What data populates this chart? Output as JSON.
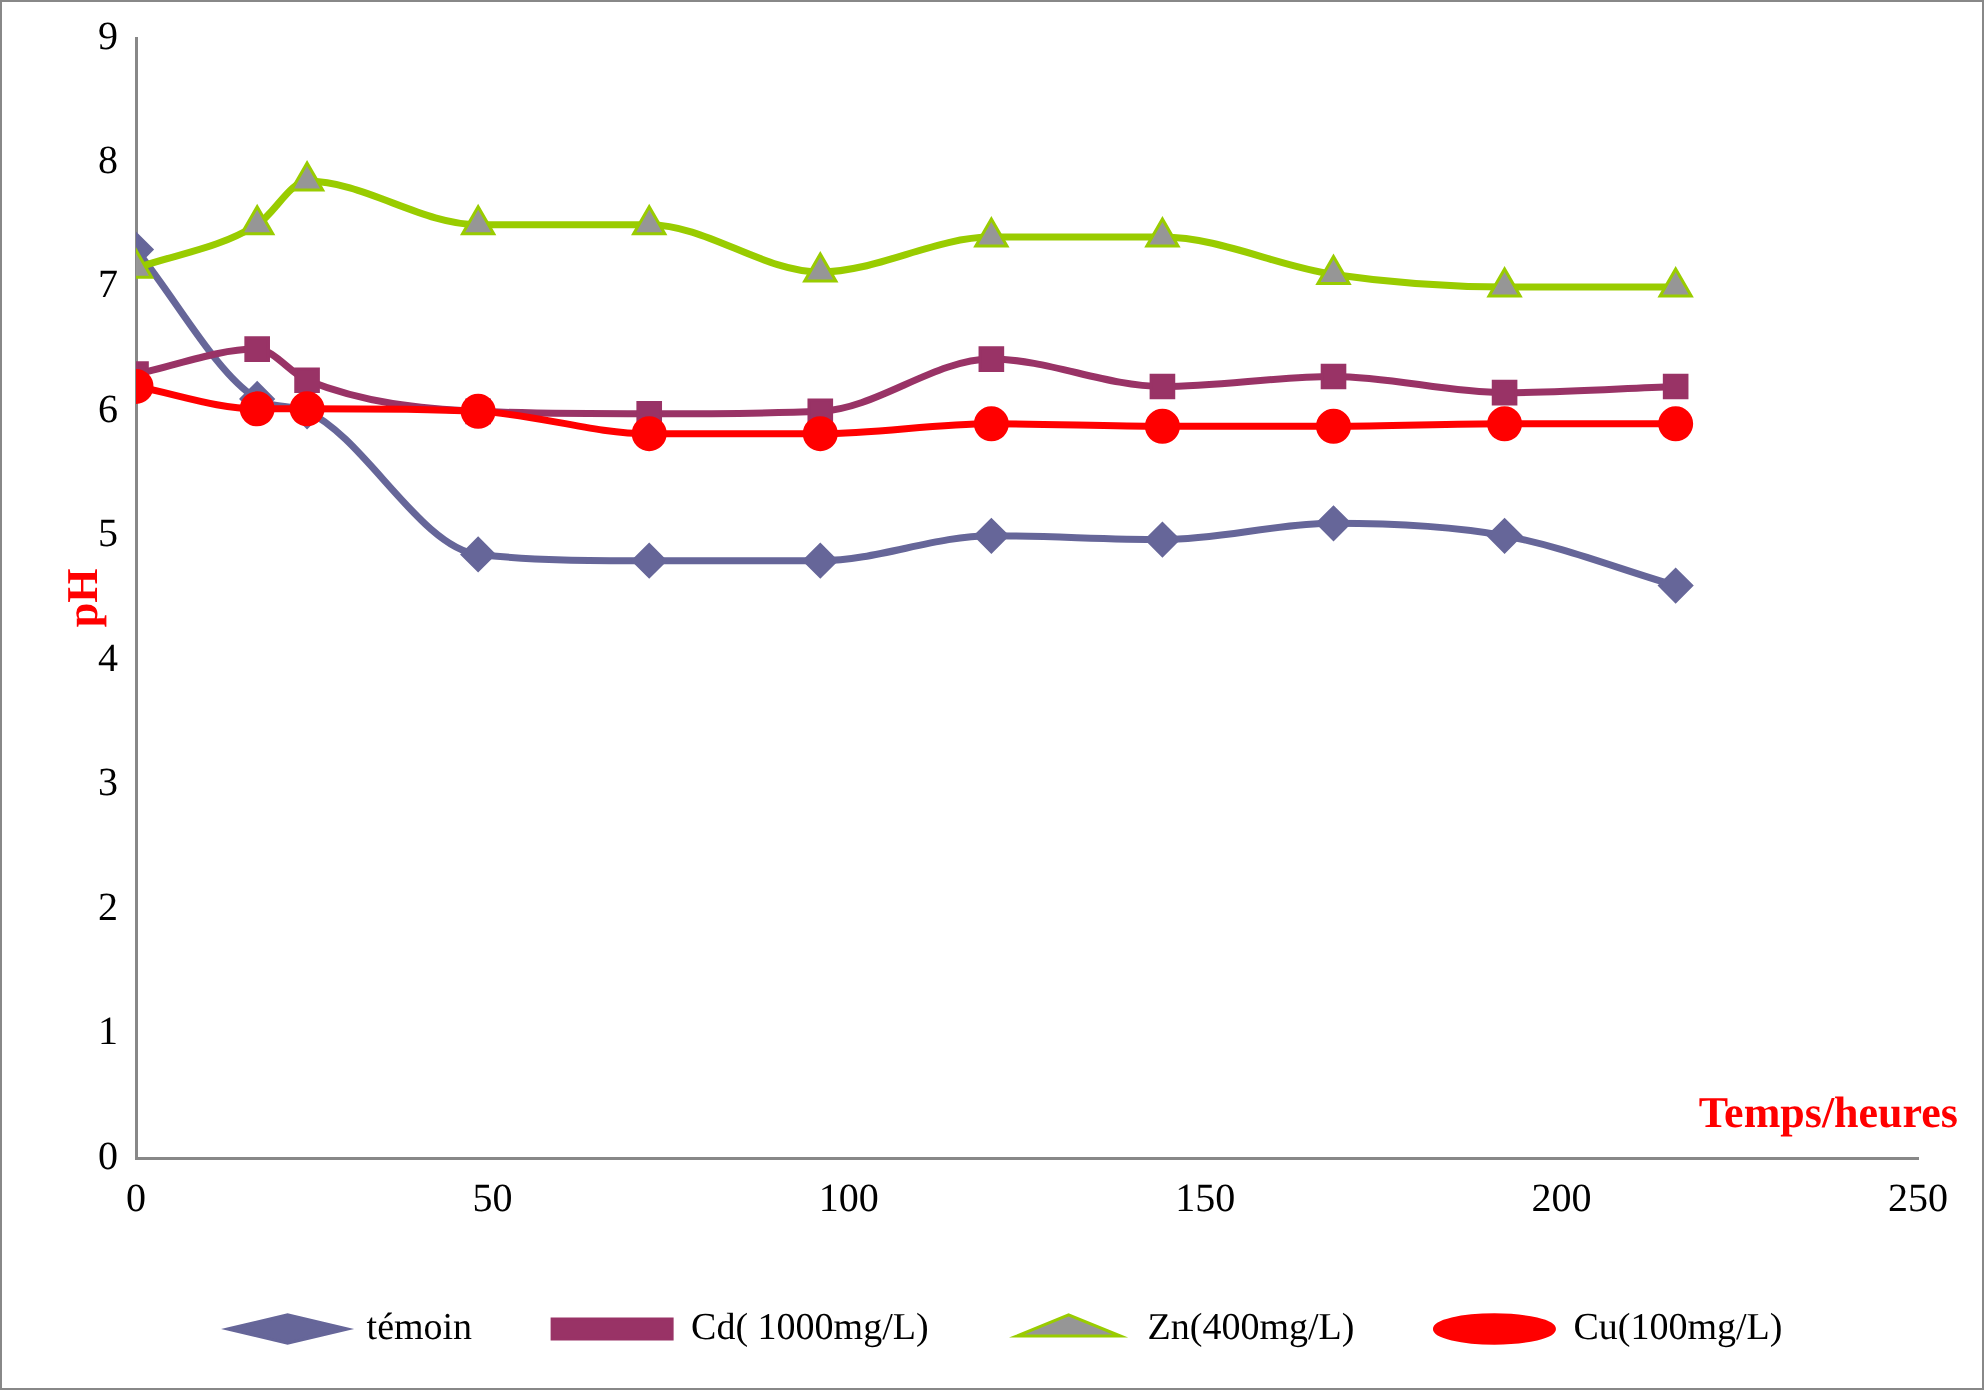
{
  "chart_data": {
    "type": "line",
    "xlabel": "Temps/heures",
    "ylabel": "pH",
    "x": [
      0,
      17,
      24,
      48,
      72,
      96,
      120,
      144,
      168,
      192,
      216
    ],
    "xlim": [
      0,
      250
    ],
    "xticks": [
      0,
      50,
      100,
      150,
      200,
      250
    ],
    "ylim": [
      0,
      9
    ],
    "yticks": [
      0,
      1,
      2,
      3,
      4,
      5,
      6,
      7,
      8,
      9
    ],
    "grid": false,
    "legend": "bottom",
    "series": [
      {
        "name": "témoin",
        "color": "#666699",
        "marker": "diamond",
        "values": [
          7.3,
          6.1,
          6.0,
          4.85,
          4.8,
          4.8,
          5.0,
          4.97,
          5.1,
          5.0,
          4.6
        ]
      },
      {
        "name": "Cd( 1000mg/L)",
        "color": "#993366",
        "marker": "square",
        "values": [
          6.3,
          6.5,
          6.25,
          6.0,
          5.98,
          6.0,
          6.42,
          6.2,
          6.28,
          6.15,
          6.2
        ]
      },
      {
        "name": "Zn(400mg/L)",
        "color": "#99cc00",
        "marker": "triangle",
        "values": [
          7.15,
          7.5,
          7.85,
          7.5,
          7.5,
          7.12,
          7.4,
          7.4,
          7.1,
          7.0,
          7.0
        ]
      },
      {
        "name": "Cu(100mg/L)",
        "color": "#ff0000",
        "marker": "circle",
        "values": [
          6.2,
          6.02,
          6.02,
          6.0,
          5.82,
          5.82,
          5.9,
          5.88,
          5.88,
          5.9,
          5.9
        ]
      }
    ]
  }
}
